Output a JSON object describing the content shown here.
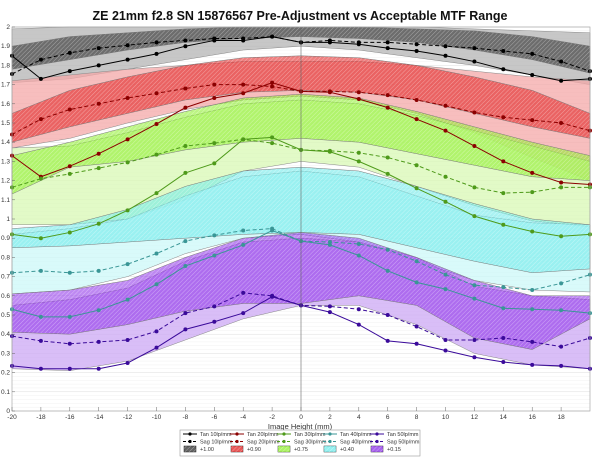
{
  "chart_data": {
    "type": "line",
    "title": "ZE 21mm f2.8 SN 15876567 Pre-Adjustment vs Acceptable MTF Range",
    "xlabel": "Image Height (mm)",
    "ylabel": "",
    "xlim": [
      -20,
      20
    ],
    "ylim": [
      0,
      2
    ],
    "grid": true,
    "legend_position": "bottom",
    "x_ticks": [
      -20,
      -18,
      -16,
      -14,
      -12,
      -10,
      -8,
      -6,
      -4,
      -2,
      0,
      2,
      4,
      6,
      8,
      10,
      12,
      14,
      16,
      18
    ],
    "y_ticks": [
      0,
      0.1,
      0.2,
      0.3,
      0.4,
      0.5,
      0.6,
      0.7,
      0.8,
      0.9,
      1,
      1.1,
      1.2,
      1.3,
      1.4,
      1.5,
      1.6,
      1.7,
      1.8,
      1.9,
      2
    ],
    "x": [
      -20,
      -18,
      -16,
      -14,
      -12,
      -10,
      -8,
      -6,
      -4,
      -2,
      0,
      2,
      4,
      6,
      8,
      10,
      12,
      14,
      16,
      18,
      20
    ],
    "series": [
      {
        "name": "Tan 10lp/mm",
        "color": "#000000",
        "dash": false,
        "values": [
          1.85,
          1.73,
          1.77,
          1.8,
          1.83,
          1.86,
          1.9,
          1.93,
          1.93,
          1.95,
          1.92,
          1.92,
          1.91,
          1.89,
          1.875,
          1.85,
          1.82,
          1.78,
          1.75,
          1.72,
          1.73
        ]
      },
      {
        "name": "Sag 10lp/mm",
        "color": "#000000",
        "dash": true,
        "values": [
          1.755,
          1.83,
          1.865,
          1.89,
          1.905,
          1.92,
          1.93,
          1.94,
          1.94,
          1.95,
          1.92,
          1.93,
          1.92,
          1.92,
          1.91,
          1.9,
          1.89,
          1.875,
          1.86,
          1.82,
          1.77
        ]
      },
      {
        "name": "Tan 20lp/mm",
        "color": "#8b0000",
        "dash": false,
        "values": [
          1.33,
          1.22,
          1.275,
          1.34,
          1.415,
          1.495,
          1.58,
          1.63,
          1.655,
          1.71,
          1.665,
          1.66,
          1.625,
          1.58,
          1.52,
          1.46,
          1.38,
          1.3,
          1.24,
          1.19,
          1.18
        ]
      },
      {
        "name": "Sag 20lp/mm",
        "color": "#8b0000",
        "dash": true,
        "values": [
          1.44,
          1.52,
          1.57,
          1.6,
          1.63,
          1.655,
          1.68,
          1.7,
          1.7,
          1.69,
          1.665,
          1.665,
          1.66,
          1.645,
          1.62,
          1.59,
          1.555,
          1.53,
          1.515,
          1.5,
          1.46
        ]
      },
      {
        "name": "Tan 30lp/mm",
        "color": "#4e9a1a",
        "dash": false,
        "values": [
          0.92,
          0.9,
          0.93,
          0.975,
          1.045,
          1.135,
          1.24,
          1.29,
          1.415,
          1.425,
          1.36,
          1.35,
          1.3,
          1.235,
          1.16,
          1.09,
          1.015,
          0.97,
          0.935,
          0.91,
          0.92
        ]
      },
      {
        "name": "Sag 30lp/mm",
        "color": "#4e9a1a",
        "dash": true,
        "values": [
          1.165,
          1.21,
          1.235,
          1.265,
          1.295,
          1.335,
          1.38,
          1.395,
          1.415,
          1.395,
          1.36,
          1.355,
          1.345,
          1.32,
          1.28,
          1.22,
          1.165,
          1.135,
          1.14,
          1.165,
          1.165
        ]
      },
      {
        "name": "Tan 40lp/mm",
        "color": "#3a9696",
        "dash": false,
        "values": [
          0.53,
          0.49,
          0.49,
          0.525,
          0.58,
          0.66,
          0.755,
          0.81,
          0.865,
          0.94,
          0.885,
          0.865,
          0.81,
          0.73,
          0.67,
          0.635,
          0.585,
          0.535,
          0.53,
          0.525,
          0.51
        ]
      },
      {
        "name": "Sag 40lp/mm",
        "color": "#3a9696",
        "dash": true,
        "values": [
          0.72,
          0.73,
          0.72,
          0.73,
          0.765,
          0.82,
          0.885,
          0.915,
          0.94,
          0.95,
          0.885,
          0.88,
          0.87,
          0.84,
          0.78,
          0.71,
          0.655,
          0.645,
          0.63,
          0.665,
          0.71
        ]
      },
      {
        "name": "Tan 50lp/mm",
        "color": "#3a0a9a",
        "dash": false,
        "values": [
          0.235,
          0.22,
          0.22,
          0.22,
          0.25,
          0.33,
          0.425,
          0.465,
          0.51,
          0.595,
          0.55,
          0.515,
          0.45,
          0.365,
          0.35,
          0.315,
          0.28,
          0.255,
          0.24,
          0.235,
          0.22
        ]
      },
      {
        "name": "Sag 50lp/mm",
        "color": "#3a0a9a",
        "dash": true,
        "values": [
          0.39,
          0.365,
          0.35,
          0.36,
          0.37,
          0.415,
          0.51,
          0.545,
          0.615,
          0.6,
          0.55,
          0.545,
          0.53,
          0.5,
          0.44,
          0.37,
          0.37,
          0.38,
          0.36,
          0.335,
          0.38
        ]
      }
    ],
    "band_x": [
      -20,
      -16,
      -12,
      -8,
      -4,
      0,
      4,
      8,
      12,
      16,
      20
    ],
    "bands": [
      {
        "name": "+1.00",
        "color": "#222222",
        "light": "#b4b4b4",
        "tan_upper": [
          1.9,
          1.95,
          1.97,
          1.99,
          2.0,
          2.0,
          2.0,
          1.99,
          1.98,
          1.95,
          1.9
        ],
        "tan_lower": [
          1.78,
          1.83,
          1.88,
          1.92,
          1.94,
          1.95,
          1.94,
          1.92,
          1.88,
          1.83,
          1.76
        ],
        "sag_upper": [
          1.99,
          2.0,
          2.0,
          2.0,
          2.0,
          2.0,
          2.0,
          2.0,
          1.99,
          1.98,
          1.97
        ],
        "sag_lower": [
          1.71,
          1.73,
          1.78,
          1.83,
          1.88,
          1.9,
          1.88,
          1.84,
          1.8,
          1.75,
          1.7
        ]
      },
      {
        "name": "+0.90",
        "color": "#e01818",
        "light": "#f4a8a8",
        "tan_upper": [
          1.55,
          1.67,
          1.74,
          1.8,
          1.84,
          1.85,
          1.84,
          1.8,
          1.74,
          1.67,
          1.55
        ],
        "tan_lower": [
          1.4,
          1.48,
          1.55,
          1.62,
          1.66,
          1.67,
          1.66,
          1.62,
          1.55,
          1.48,
          1.42
        ],
        "sag_upper": [
          1.72,
          1.75,
          1.78,
          1.8,
          1.82,
          1.82,
          1.82,
          1.8,
          1.77,
          1.74,
          1.72
        ],
        "sag_lower": [
          1.37,
          1.42,
          1.5,
          1.57,
          1.62,
          1.64,
          1.62,
          1.55,
          1.45,
          1.32,
          1.2
        ]
      },
      {
        "name": "+0.75",
        "color": "#88ee22",
        "light": "#d8f8b4",
        "tan_upper": [
          1.33,
          1.4,
          1.48,
          1.56,
          1.63,
          1.65,
          1.63,
          1.56,
          1.48,
          1.4,
          1.33
        ],
        "tan_lower": [
          1.13,
          1.27,
          1.3,
          1.36,
          1.4,
          1.42,
          1.4,
          1.34,
          1.28,
          1.22,
          1.2
        ],
        "sag_upper": [
          1.37,
          1.38,
          1.45,
          1.53,
          1.6,
          1.62,
          1.6,
          1.54,
          1.46,
          1.38,
          1.3
        ],
        "sag_lower": [
          0.97,
          0.97,
          1.0,
          1.1,
          1.25,
          1.3,
          1.27,
          1.17,
          1.07,
          0.99,
          0.96
        ]
      },
      {
        "name": "+0.40",
        "color": "#66e8e8",
        "light": "#ccf8f8",
        "tan_upper": [
          0.95,
          0.97,
          1.05,
          1.17,
          1.25,
          1.27,
          1.25,
          1.17,
          1.08,
          1.0,
          0.97
        ],
        "tan_lower": [
          0.85,
          0.86,
          0.88,
          0.9,
          0.92,
          0.93,
          0.92,
          0.85,
          0.78,
          0.72,
          0.74
        ],
        "sag_upper": [
          0.92,
          0.95,
          1.0,
          1.12,
          1.22,
          1.25,
          1.22,
          1.12,
          1.02,
          0.98,
          0.97
        ],
        "sag_lower": [
          0.61,
          0.63,
          0.7,
          0.82,
          0.9,
          0.92,
          0.88,
          0.78,
          0.68,
          0.63,
          0.62
        ]
      },
      {
        "name": "+0.15",
        "color": "#8a2ae8",
        "light": "#cca8f4",
        "tan_upper": [
          0.61,
          0.63,
          0.68,
          0.8,
          0.9,
          0.93,
          0.9,
          0.8,
          0.68,
          0.6,
          0.6
        ],
        "tan_lower": [
          0.41,
          0.4,
          0.45,
          0.52,
          0.56,
          0.56,
          0.6,
          0.55,
          0.38,
          0.32,
          0.48
        ],
        "sag_upper": [
          0.55,
          0.58,
          0.64,
          0.78,
          0.88,
          0.9,
          0.88,
          0.8,
          0.65,
          0.6,
          0.58
        ],
        "sag_lower": [
          0.22,
          0.21,
          0.26,
          0.37,
          0.48,
          0.55,
          0.55,
          0.45,
          0.3,
          0.24,
          0.22
        ]
      }
    ]
  }
}
